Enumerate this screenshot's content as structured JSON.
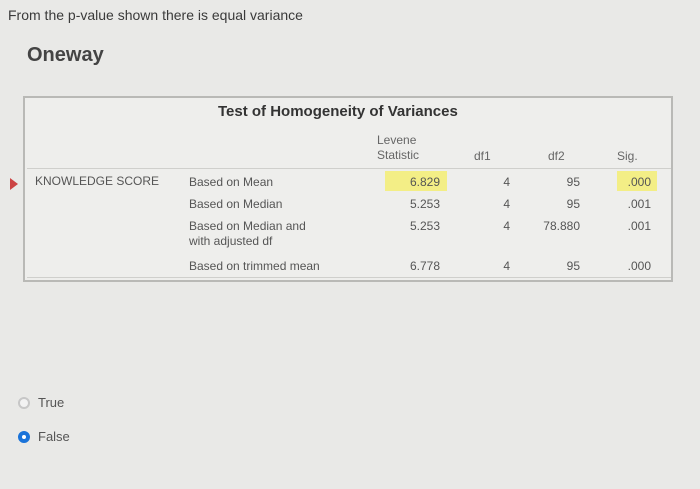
{
  "question": "From the p-value shown there is equal variance",
  "section_title": "Oneway",
  "table": {
    "title": "Test of Homogeneity of Variances",
    "headers": {
      "levene": "Levene Statistic",
      "df1": "df1",
      "df2": "df2",
      "sig": "Sig."
    },
    "row_label": "KNOWLEDGE SCORE",
    "rows": [
      {
        "label": "Based on Mean",
        "levene": "6.829",
        "df1": "4",
        "df2": "95",
        "sig": ".000"
      },
      {
        "label": "Based on Median",
        "levene": "5.253",
        "df1": "4",
        "df2": "95",
        "sig": ".001"
      },
      {
        "label": "Based on Median and with adjusted df",
        "levene": "5.253",
        "df1": "4",
        "df2": "78.880",
        "sig": ".001"
      },
      {
        "label": "Based on trimmed mean",
        "levene": "6.778",
        "df1": "4",
        "df2": "95",
        "sig": ".000"
      }
    ],
    "highlight_color": "#f3ee86"
  },
  "options": [
    {
      "label": "True",
      "selected": false
    },
    {
      "label": "False",
      "selected": true
    }
  ]
}
